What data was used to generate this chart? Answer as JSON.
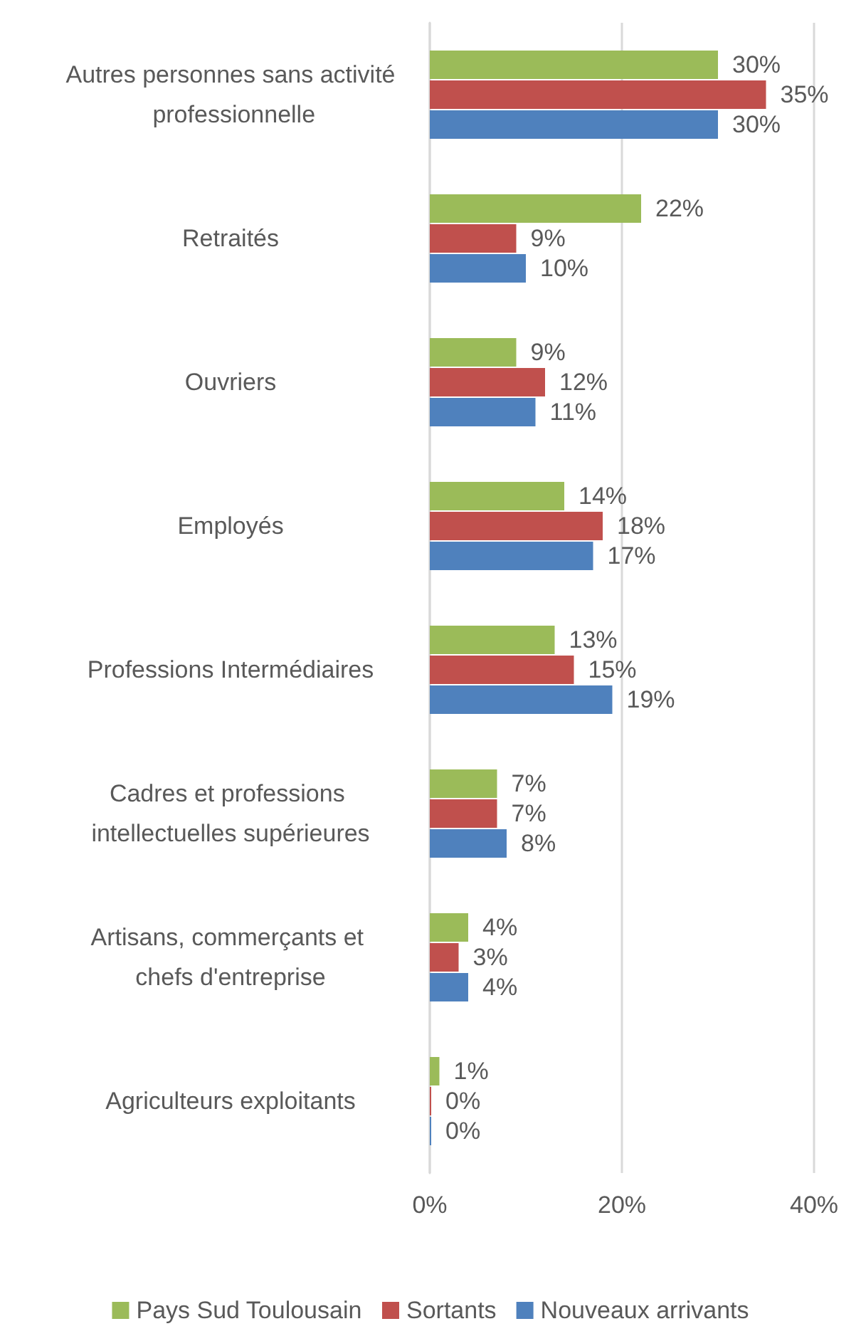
{
  "chart_data": {
    "type": "bar",
    "orientation": "horizontal",
    "categories": [
      "Autres personnes sans activité professionnelle",
      "Retraités",
      "Ouvriers",
      "Employés",
      "Professions Intermédiaires",
      "Cadres et professions intellectuelles supérieures",
      "Artisans, commerçants et chefs d'entreprise",
      "Agriculteurs exploitants"
    ],
    "series": [
      {
        "name": "Pays Sud Toulousain",
        "color": "#9bbb59",
        "values": [
          30,
          22,
          9,
          14,
          13,
          7,
          4,
          1
        ],
        "value_labels": [
          "30%",
          "22%",
          "9%",
          "14%",
          "13%",
          "7%",
          "4%",
          "1%"
        ]
      },
      {
        "name": "Sortants",
        "color": "#c0504d",
        "values": [
          35,
          9,
          12,
          18,
          15,
          7,
          3,
          0
        ],
        "value_labels": [
          "35%",
          "9%",
          "12%",
          "18%",
          "15%",
          "7%",
          "3%",
          "0%"
        ]
      },
      {
        "name": "Nouveaux arrivants",
        "color": "#4f81bd",
        "values": [
          30,
          10,
          11,
          17,
          19,
          8,
          4,
          0
        ],
        "value_labels": [
          "30%",
          "10%",
          "11%",
          "17%",
          "19%",
          "8%",
          "4%",
          "0%"
        ]
      }
    ],
    "xlim": [
      0,
      40
    ],
    "xticks": [
      {
        "value": 0,
        "label": "0%"
      },
      {
        "value": 20,
        "label": "20%"
      },
      {
        "value": 40,
        "label": "40%"
      }
    ],
    "grid": "x",
    "legend": "bottom"
  }
}
